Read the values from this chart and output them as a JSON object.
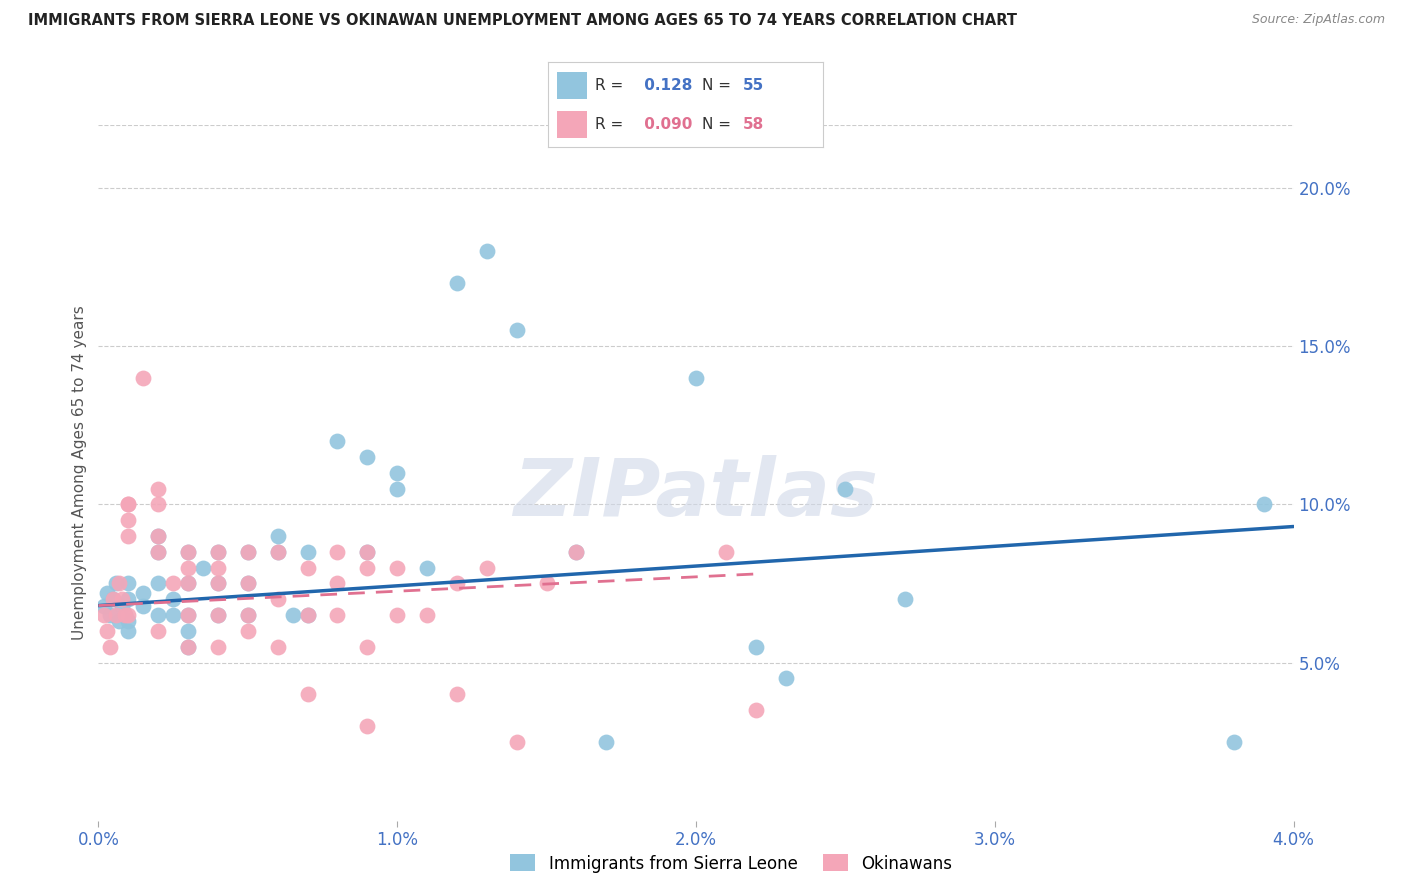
{
  "title": "IMMIGRANTS FROM SIERRA LEONE VS OKINAWAN UNEMPLOYMENT AMONG AGES 65 TO 74 YEARS CORRELATION CHART",
  "source": "Source: ZipAtlas.com",
  "ylabel": "Unemployment Among Ages 65 to 74 years",
  "xlim": [
    0.0,
    0.04
  ],
  "ylim": [
    0.0,
    0.22
  ],
  "xticks": [
    0.0,
    0.01,
    0.02,
    0.03,
    0.04
  ],
  "xtick_labels": [
    "0.0%",
    "1.0%",
    "2.0%",
    "3.0%",
    "4.0%"
  ],
  "yticks_right": [
    0.05,
    0.1,
    0.15,
    0.2
  ],
  "ytick_labels_right": [
    "5.0%",
    "10.0%",
    "15.0%",
    "20.0%"
  ],
  "blue_color": "#92c5de",
  "pink_color": "#f4a6b8",
  "trend_blue": "#2166ac",
  "trend_pink": "#e07090",
  "R_blue": 0.128,
  "N_blue": 55,
  "R_pink": 0.09,
  "N_pink": 58,
  "legend_label_blue": "Immigrants from Sierra Leone",
  "legend_label_pink": "Okinawans",
  "watermark": "ZIPatlas",
  "blue_scatter_x": [
    0.0002,
    0.0003,
    0.0004,
    0.0005,
    0.0006,
    0.0007,
    0.0008,
    0.0009,
    0.001,
    0.001,
    0.001,
    0.001,
    0.0015,
    0.0015,
    0.002,
    0.002,
    0.002,
    0.002,
    0.0025,
    0.0025,
    0.003,
    0.003,
    0.003,
    0.003,
    0.003,
    0.0035,
    0.004,
    0.004,
    0.004,
    0.005,
    0.005,
    0.005,
    0.006,
    0.006,
    0.0065,
    0.007,
    0.007,
    0.008,
    0.009,
    0.009,
    0.01,
    0.01,
    0.011,
    0.012,
    0.013,
    0.014,
    0.016,
    0.017,
    0.02,
    0.022,
    0.023,
    0.025,
    0.027,
    0.038,
    0.039
  ],
  "blue_scatter_y": [
    0.068,
    0.072,
    0.065,
    0.07,
    0.075,
    0.063,
    0.068,
    0.065,
    0.07,
    0.075,
    0.063,
    0.06,
    0.072,
    0.068,
    0.075,
    0.065,
    0.085,
    0.09,
    0.07,
    0.065,
    0.085,
    0.075,
    0.065,
    0.06,
    0.055,
    0.08,
    0.075,
    0.085,
    0.065,
    0.085,
    0.075,
    0.065,
    0.09,
    0.085,
    0.065,
    0.085,
    0.065,
    0.12,
    0.085,
    0.115,
    0.11,
    0.105,
    0.08,
    0.17,
    0.18,
    0.155,
    0.085,
    0.025,
    0.14,
    0.055,
    0.045,
    0.105,
    0.07,
    0.025,
    0.1
  ],
  "pink_scatter_x": [
    0.0002,
    0.0003,
    0.0004,
    0.0005,
    0.0006,
    0.0007,
    0.0008,
    0.0009,
    0.001,
    0.001,
    0.001,
    0.001,
    0.001,
    0.0015,
    0.002,
    0.002,
    0.002,
    0.002,
    0.002,
    0.0025,
    0.003,
    0.003,
    0.003,
    0.003,
    0.003,
    0.004,
    0.004,
    0.004,
    0.004,
    0.004,
    0.005,
    0.005,
    0.005,
    0.005,
    0.006,
    0.006,
    0.006,
    0.007,
    0.007,
    0.007,
    0.008,
    0.008,
    0.008,
    0.009,
    0.009,
    0.009,
    0.009,
    0.01,
    0.01,
    0.011,
    0.012,
    0.012,
    0.013,
    0.014,
    0.015,
    0.016,
    0.021,
    0.022
  ],
  "pink_scatter_y": [
    0.065,
    0.06,
    0.055,
    0.07,
    0.065,
    0.075,
    0.07,
    0.065,
    0.1,
    0.1,
    0.095,
    0.09,
    0.065,
    0.14,
    0.105,
    0.1,
    0.09,
    0.085,
    0.06,
    0.075,
    0.085,
    0.08,
    0.075,
    0.065,
    0.055,
    0.085,
    0.08,
    0.075,
    0.065,
    0.055,
    0.085,
    0.075,
    0.065,
    0.06,
    0.085,
    0.07,
    0.055,
    0.08,
    0.065,
    0.04,
    0.085,
    0.075,
    0.065,
    0.085,
    0.08,
    0.055,
    0.03,
    0.08,
    0.065,
    0.065,
    0.075,
    0.04,
    0.08,
    0.025,
    0.075,
    0.085,
    0.085,
    0.035
  ],
  "blue_trend_x": [
    0.0,
    0.04
  ],
  "blue_trend_y": [
    0.068,
    0.093
  ],
  "pink_trend_x": [
    0.0,
    0.022
  ],
  "pink_trend_y": [
    0.068,
    0.078
  ]
}
